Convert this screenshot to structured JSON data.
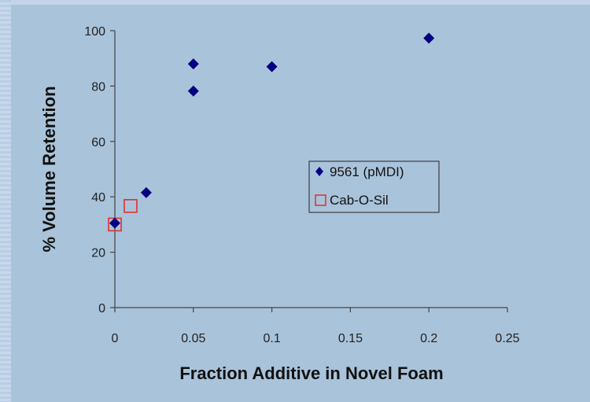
{
  "chart_data": {
    "type": "scatter",
    "title": "",
    "xlabel": "Fraction Additive in Novel Foam",
    "ylabel": "% Volume Retention",
    "xlim": [
      0,
      0.25
    ],
    "ylim": [
      0,
      100
    ],
    "x_ticks": [
      "0",
      "0.05",
      "0.1",
      "0.15",
      "0.2",
      "0.25"
    ],
    "y_ticks": [
      "0",
      "20",
      "40",
      "60",
      "80",
      "100"
    ],
    "grid": false,
    "legend_position": "center-right",
    "series": [
      {
        "name": "9561 (pMDI)",
        "marker": "diamond",
        "color": "#000080",
        "points": [
          [
            0,
            30.5
          ],
          [
            0.02,
            41.5
          ],
          [
            0.05,
            88
          ],
          [
            0.05,
            78.2
          ],
          [
            0.1,
            87
          ],
          [
            0.2,
            97.3
          ]
        ]
      },
      {
        "name": "Cab-O-Sil",
        "marker": "open-square",
        "color": "#e03030",
        "points": [
          [
            0,
            30
          ],
          [
            0.01,
            36.7
          ]
        ]
      }
    ]
  }
}
